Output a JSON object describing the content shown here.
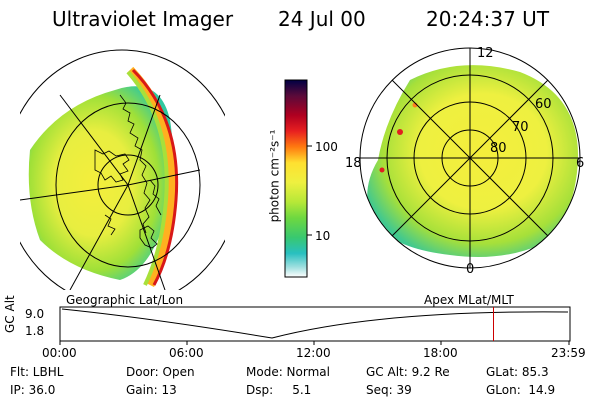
{
  "header": {
    "title": "Ultraviolet Imager",
    "date": "24 Jul 00",
    "time": "20:24:37 UT"
  },
  "left_panel": {
    "caption": "Geographic Lat/Lon"
  },
  "right_panel": {
    "caption": "Apex MLat/MLT",
    "mlt_labels": [
      "12",
      "18",
      "6",
      "0"
    ],
    "mlat_labels": [
      "60",
      "70",
      "80"
    ]
  },
  "colorbar": {
    "unit_label": "photon cm⁻²s⁻¹",
    "ticks": [
      "100",
      "10"
    ],
    "colors": [
      "#000044",
      "#5a0a3a",
      "#b00020",
      "#e82020",
      "#ff7a10",
      "#ffb020",
      "#ffe030",
      "#eef040",
      "#b6e838",
      "#6ed840",
      "#38c870",
      "#28c0c0",
      "#a0e0e0",
      "#ffffff"
    ]
  },
  "altitude_plot": {
    "ylabel": "GC Alt",
    "y_ticks": [
      "9.0",
      "1.8"
    ],
    "x_ticks": [
      "00:00",
      "06:00",
      "12:00",
      "18:00",
      "23:59"
    ],
    "marker_color": "#cc0000",
    "marker_time_fraction": 0.85
  },
  "status": {
    "row1": [
      {
        "label": "Flt: LBHL"
      },
      {
        "label": "Door: Open"
      },
      {
        "label": "Mode: Normal"
      },
      {
        "label": "GC Alt: 9.2 Re"
      },
      {
        "label": "GLat: 85.3"
      }
    ],
    "row2": [
      {
        "label": "IP: 36.0"
      },
      {
        "label": "Gain: 13"
      },
      {
        "label": "Dsp:     5.1"
      },
      {
        "label": "Seq: 39"
      },
      {
        "label": "GLon:  14.9"
      }
    ]
  }
}
